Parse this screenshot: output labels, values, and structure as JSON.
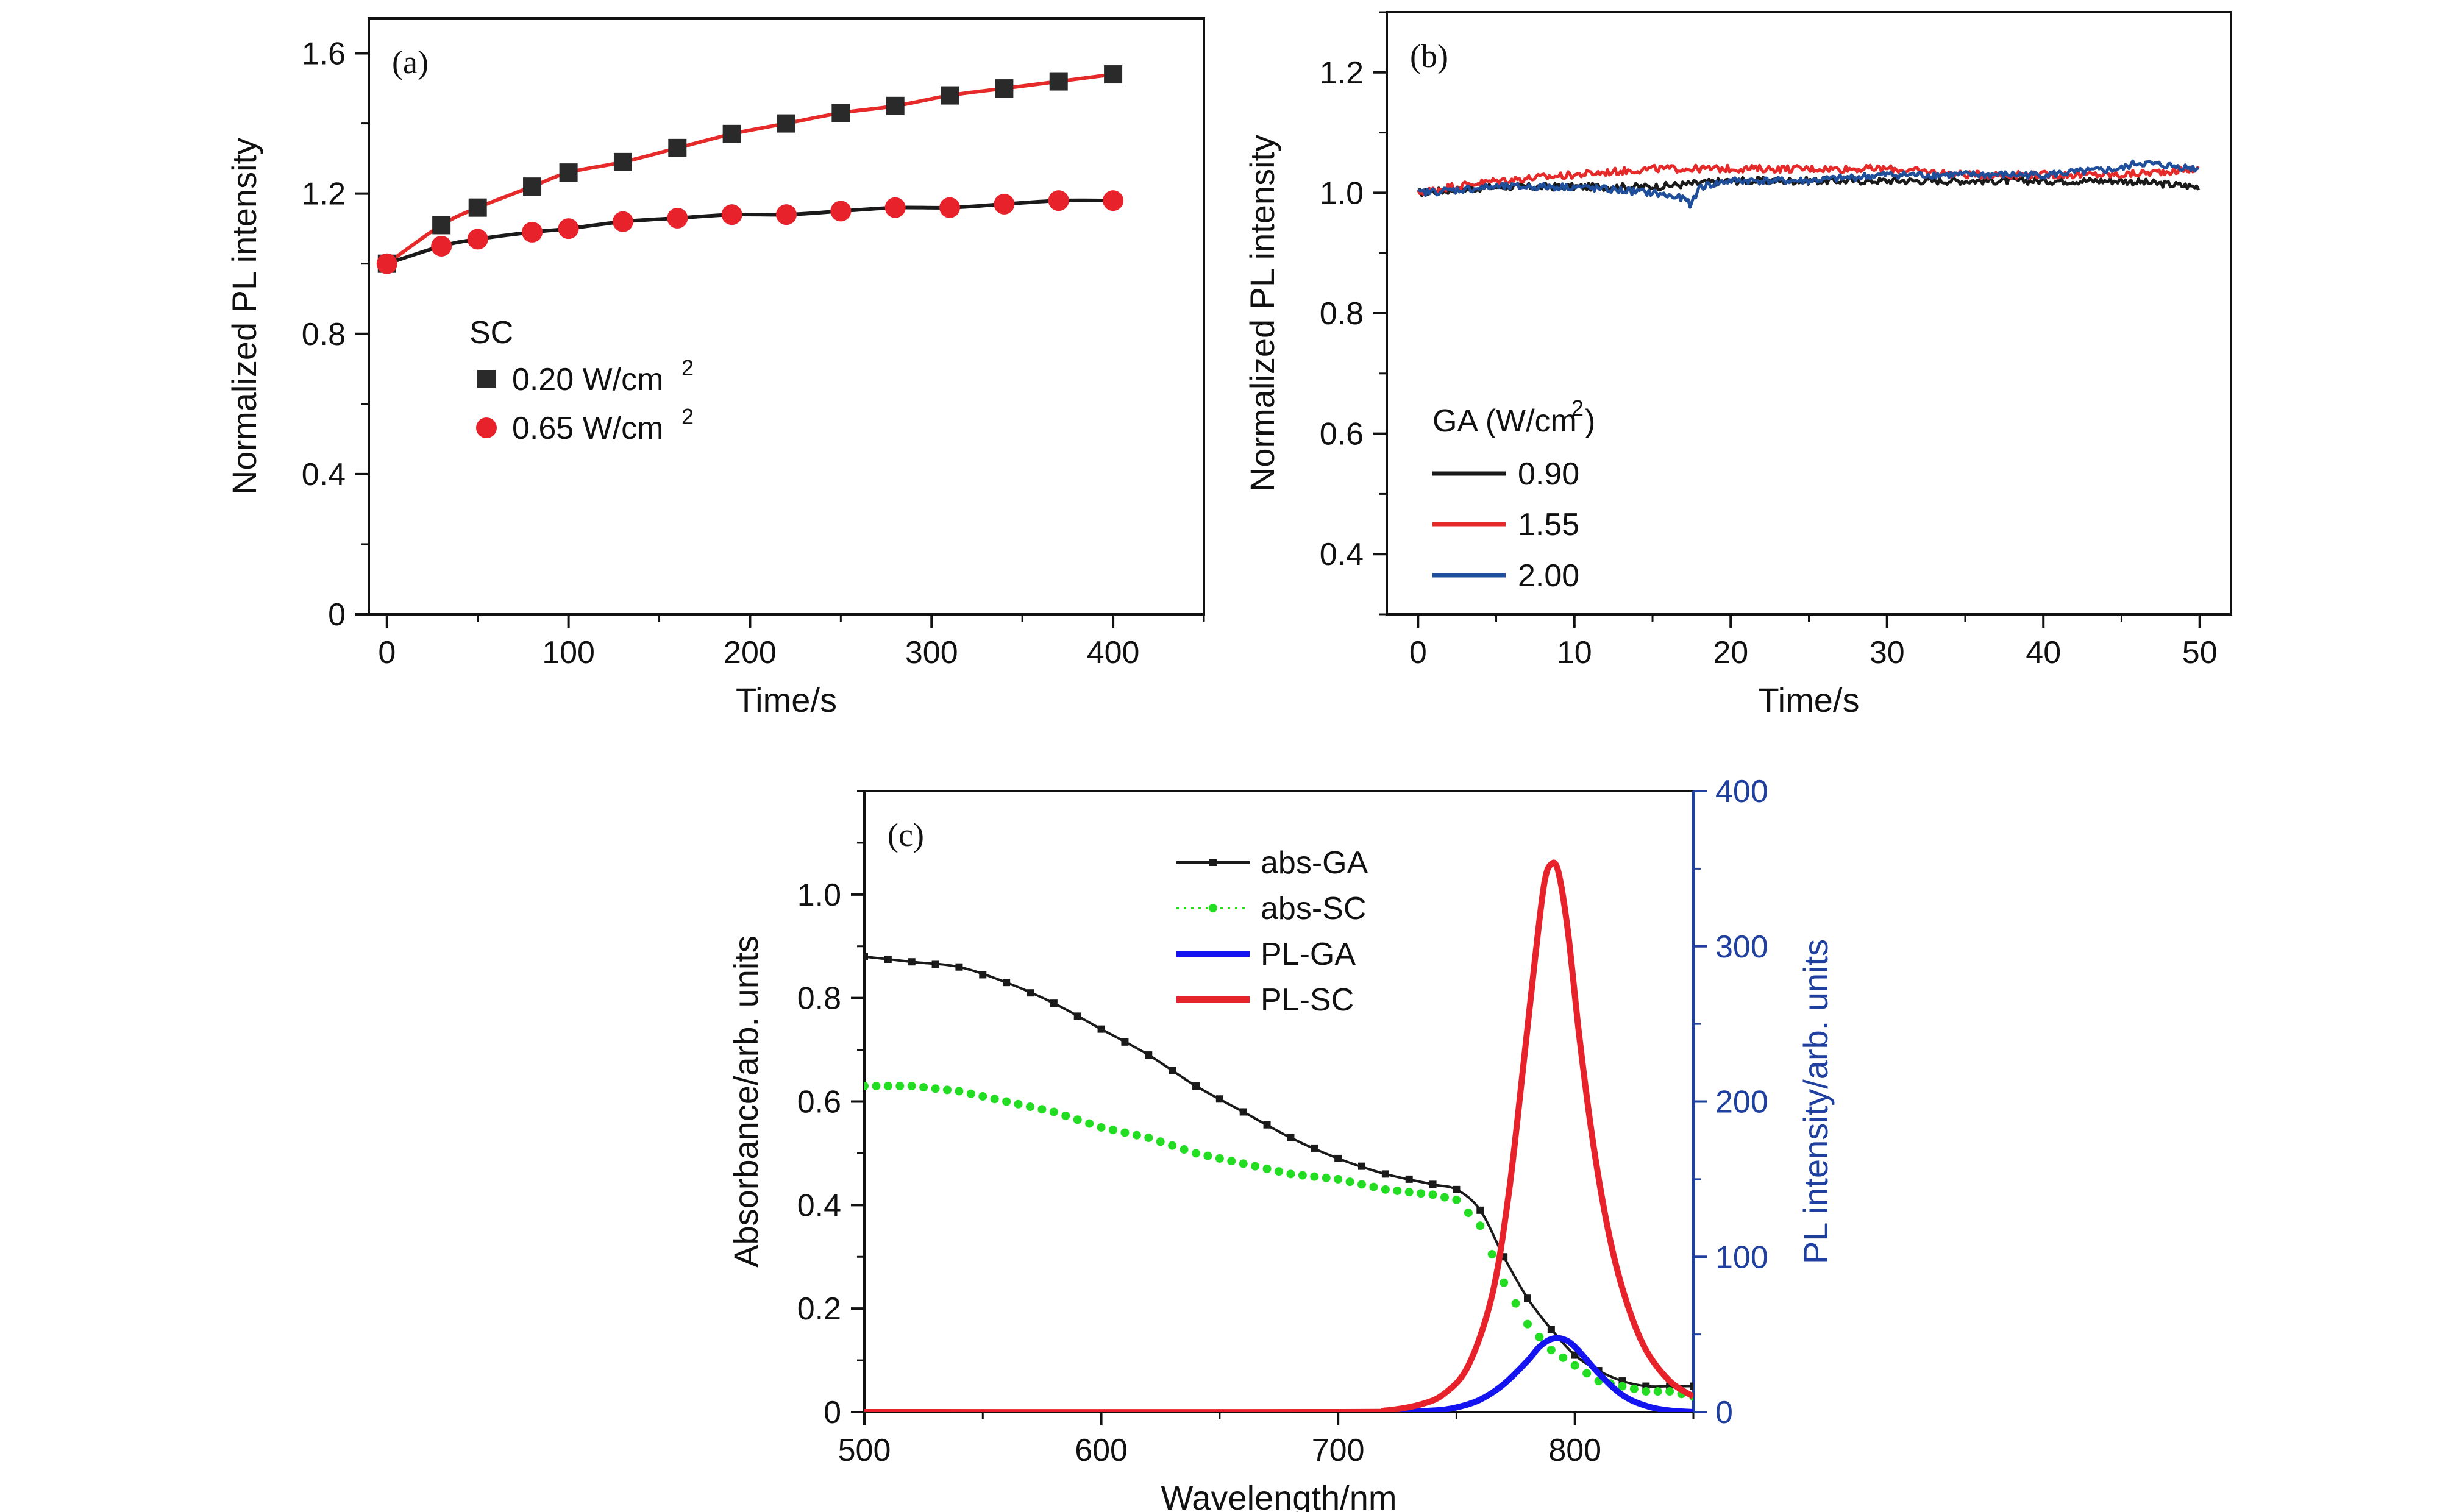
{
  "colors": {
    "black": "#1a1a1a",
    "red": "#e8222a",
    "red_line": "#e62a2a",
    "blue_b": "#1f4e9a",
    "blue_c": "#1414f0",
    "green": "#22dd22",
    "axis_blue": "#2040a0"
  },
  "chart_data": [
    {
      "id": "a",
      "type": "scatter",
      "panel_label": "(a)",
      "xlabel": "Time/s",
      "ylabel": "Normalized PL intensity",
      "xlim": [
        -10,
        450
      ],
      "ylim": [
        0,
        1.7
      ],
      "xticks": [
        0,
        100,
        200,
        300,
        400
      ],
      "xtick_labels": [
        "0",
        "100",
        "200",
        "300",
        "400"
      ],
      "yticks": [
        0,
        0.4,
        0.8,
        1.2,
        1.6
      ],
      "ytick_labels": [
        "0",
        "0.4",
        "0.8",
        "1.2",
        "1.6"
      ],
      "legend": {
        "title": "SC",
        "entries": [
          {
            "label": "0.20 W/cm",
            "sup": "2"
          },
          {
            "label": "0.65 W/cm",
            "sup": "2"
          }
        ]
      },
      "series": [
        {
          "name": "0.20 W/cm2",
          "marker": "square",
          "fit_color_key": "red_line",
          "x": [
            0,
            30,
            50,
            80,
            100,
            130,
            160,
            190,
            220,
            250,
            280,
            310,
            340,
            370,
            400
          ],
          "y": [
            1.0,
            1.11,
            1.16,
            1.22,
            1.26,
            1.29,
            1.33,
            1.37,
            1.4,
            1.43,
            1.45,
            1.48,
            1.5,
            1.52,
            1.54
          ]
        },
        {
          "name": "0.65 W/cm2",
          "marker": "circle",
          "fit_color_key": "black",
          "x": [
            0,
            30,
            50,
            80,
            100,
            130,
            160,
            190,
            220,
            250,
            280,
            310,
            340,
            370,
            400
          ],
          "y": [
            1.0,
            1.05,
            1.07,
            1.09,
            1.1,
            1.12,
            1.13,
            1.14,
            1.14,
            1.15,
            1.16,
            1.16,
            1.17,
            1.18,
            1.18
          ]
        }
      ]
    },
    {
      "id": "b",
      "type": "line",
      "panel_label": "(b)",
      "xlabel": "Time/s",
      "ylabel": "Normalized PL intensity",
      "xlim": [
        -2,
        52
      ],
      "ylim": [
        0.3,
        1.3
      ],
      "xticks": [
        0,
        10,
        20,
        30,
        40,
        50
      ],
      "xtick_labels": [
        "0",
        "10",
        "20",
        "30",
        "40",
        "50"
      ],
      "yticks": [
        0.4,
        0.6,
        0.8,
        1.0,
        1.2
      ],
      "ytick_labels": [
        "0.4",
        "0.6",
        "0.8",
        "1.0",
        "1.2"
      ],
      "legend": {
        "title": "GA (W/cm",
        "title_sup": "2",
        "title_end": ")",
        "entries": [
          {
            "label": "0.90"
          },
          {
            "label": "1.55"
          },
          {
            "label": "2.00"
          }
        ]
      },
      "series": [
        {
          "name": "0.90",
          "color_key": "black",
          "x": [
            0,
            5,
            10,
            15,
            20,
            25,
            30,
            35,
            40,
            45,
            50
          ],
          "y": [
            1.0,
            1.01,
            1.01,
            1.01,
            1.02,
            1.02,
            1.02,
            1.02,
            1.02,
            1.02,
            1.01
          ]
        },
        {
          "name": "1.55",
          "color_key": "red_line",
          "x": [
            0,
            2,
            5,
            10,
            15,
            20,
            25,
            30,
            35,
            40,
            45,
            50
          ],
          "y": [
            1.0,
            1.01,
            1.02,
            1.03,
            1.04,
            1.04,
            1.04,
            1.04,
            1.03,
            1.03,
            1.03,
            1.04
          ]
        },
        {
          "name": "2.00",
          "color_key": "blue_b",
          "x": [
            0,
            5,
            10,
            15,
            17,
            17.5,
            18,
            20,
            25,
            30,
            35,
            40,
            45,
            46,
            50
          ],
          "y": [
            1.0,
            1.01,
            1.01,
            1.0,
            0.99,
            0.98,
            1.01,
            1.02,
            1.02,
            1.03,
            1.03,
            1.03,
            1.04,
            1.05,
            1.04
          ]
        }
      ]
    },
    {
      "id": "c",
      "type": "line",
      "panel_label": "(c)",
      "xlabel": "Wavelength/nm",
      "ylabel": "Absorbance/arb. units",
      "ylabel_right": "PL intensity/arb. units",
      "xlim": [
        500,
        850
      ],
      "ylim": [
        0,
        1.2
      ],
      "ylim_right": [
        0,
        400
      ],
      "xticks": [
        500,
        600,
        700,
        800
      ],
      "xtick_labels": [
        "500",
        "600",
        "700",
        "800"
      ],
      "yticks": [
        0,
        0.2,
        0.4,
        0.6,
        0.8,
        1.0
      ],
      "ytick_labels": [
        "0",
        "0.2",
        "0.4",
        "0.6",
        "0.8",
        "1.0"
      ],
      "yticks_right": [
        0,
        100,
        200,
        300,
        400
      ],
      "ytick_labels_right": [
        "0",
        "100",
        "200",
        "300",
        "400"
      ],
      "legend": {
        "entries": [
          {
            "label": "abs-GA"
          },
          {
            "label": "abs-SC"
          },
          {
            "label": "PL-GA"
          },
          {
            "label": "PL-SC"
          }
        ]
      },
      "series": [
        {
          "name": "abs-GA",
          "color_key": "black",
          "axis": "left",
          "x": [
            500,
            520,
            540,
            560,
            580,
            600,
            620,
            640,
            660,
            680,
            700,
            720,
            740,
            750,
            760,
            770,
            780,
            790,
            800,
            810,
            820,
            830,
            840,
            850
          ],
          "y": [
            0.88,
            0.87,
            0.86,
            0.83,
            0.79,
            0.74,
            0.69,
            0.63,
            0.58,
            0.53,
            0.49,
            0.46,
            0.44,
            0.43,
            0.39,
            0.3,
            0.22,
            0.16,
            0.11,
            0.08,
            0.06,
            0.05,
            0.05,
            0.05
          ]
        },
        {
          "name": "abs-SC",
          "color_key": "green",
          "axis": "left",
          "x": [
            500,
            520,
            540,
            560,
            580,
            600,
            620,
            640,
            660,
            680,
            700,
            720,
            740,
            750,
            760,
            770,
            780,
            790,
            800,
            810,
            820,
            830,
            840,
            850
          ],
          "y": [
            0.63,
            0.63,
            0.62,
            0.6,
            0.58,
            0.55,
            0.53,
            0.5,
            0.48,
            0.46,
            0.45,
            0.43,
            0.42,
            0.41,
            0.36,
            0.25,
            0.17,
            0.12,
            0.09,
            0.06,
            0.05,
            0.04,
            0.04,
            0.03
          ]
        },
        {
          "name": "PL-GA",
          "color_key": "blue_c",
          "axis": "right",
          "x": [
            700,
            720,
            740,
            750,
            760,
            770,
            780,
            785,
            790,
            795,
            800,
            810,
            820,
            830,
            840,
            850
          ],
          "y": [
            0,
            0,
            1,
            3,
            8,
            18,
            33,
            42,
            47,
            47,
            42,
            25,
            11,
            4,
            1,
            0
          ]
        },
        {
          "name": "PL-SC",
          "color_key": "red",
          "axis": "right",
          "x": [
            500,
            700,
            720,
            735,
            745,
            755,
            765,
            772,
            778,
            783,
            787,
            790,
            793,
            797,
            802,
            808,
            815,
            822,
            830,
            840,
            850
          ],
          "y": [
            0,
            0,
            1,
            5,
            12,
            30,
            75,
            140,
            220,
            290,
            340,
            353,
            348,
            310,
            240,
            170,
            110,
            70,
            40,
            20,
            10
          ]
        }
      ]
    }
  ]
}
